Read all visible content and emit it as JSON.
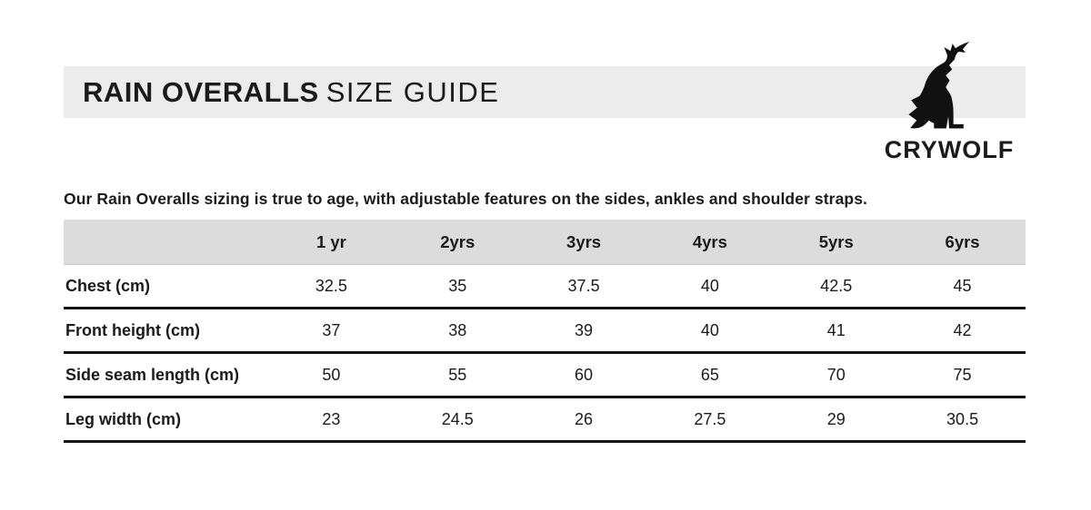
{
  "title": {
    "product": "RAIN OVERALLS",
    "suffix": "SIZE GUIDE"
  },
  "brand": {
    "name": "CRYWOLF",
    "logo_icon": "howling-wolf-icon"
  },
  "description": "Our Rain Overalls sizing is true to age, with adjustable features on the sides, ankles and shoulder straps.",
  "size_table": {
    "columns": [
      "1 yr",
      "2yrs",
      "3yrs",
      "4yrs",
      "5yrs",
      "6yrs"
    ],
    "rows": [
      {
        "label": "Chest (cm)",
        "values": [
          "32.5",
          "35",
          "37.5",
          "40",
          "42.5",
          "45"
        ]
      },
      {
        "label": "Front height (cm)",
        "values": [
          "37",
          "38",
          "39",
          "40",
          "41",
          "42"
        ]
      },
      {
        "label": "Side seam length (cm)",
        "values": [
          "50",
          "55",
          "60",
          "65",
          "70",
          "75"
        ]
      },
      {
        "label": "Leg width (cm)",
        "values": [
          "23",
          "24.5",
          "26",
          "27.5",
          "29",
          "30.5"
        ]
      }
    ]
  },
  "colors": {
    "banner_bg": "#ececec",
    "header_bg": "#dcdcdc",
    "text": "#1b1b1b",
    "row_border": "#141414"
  }
}
